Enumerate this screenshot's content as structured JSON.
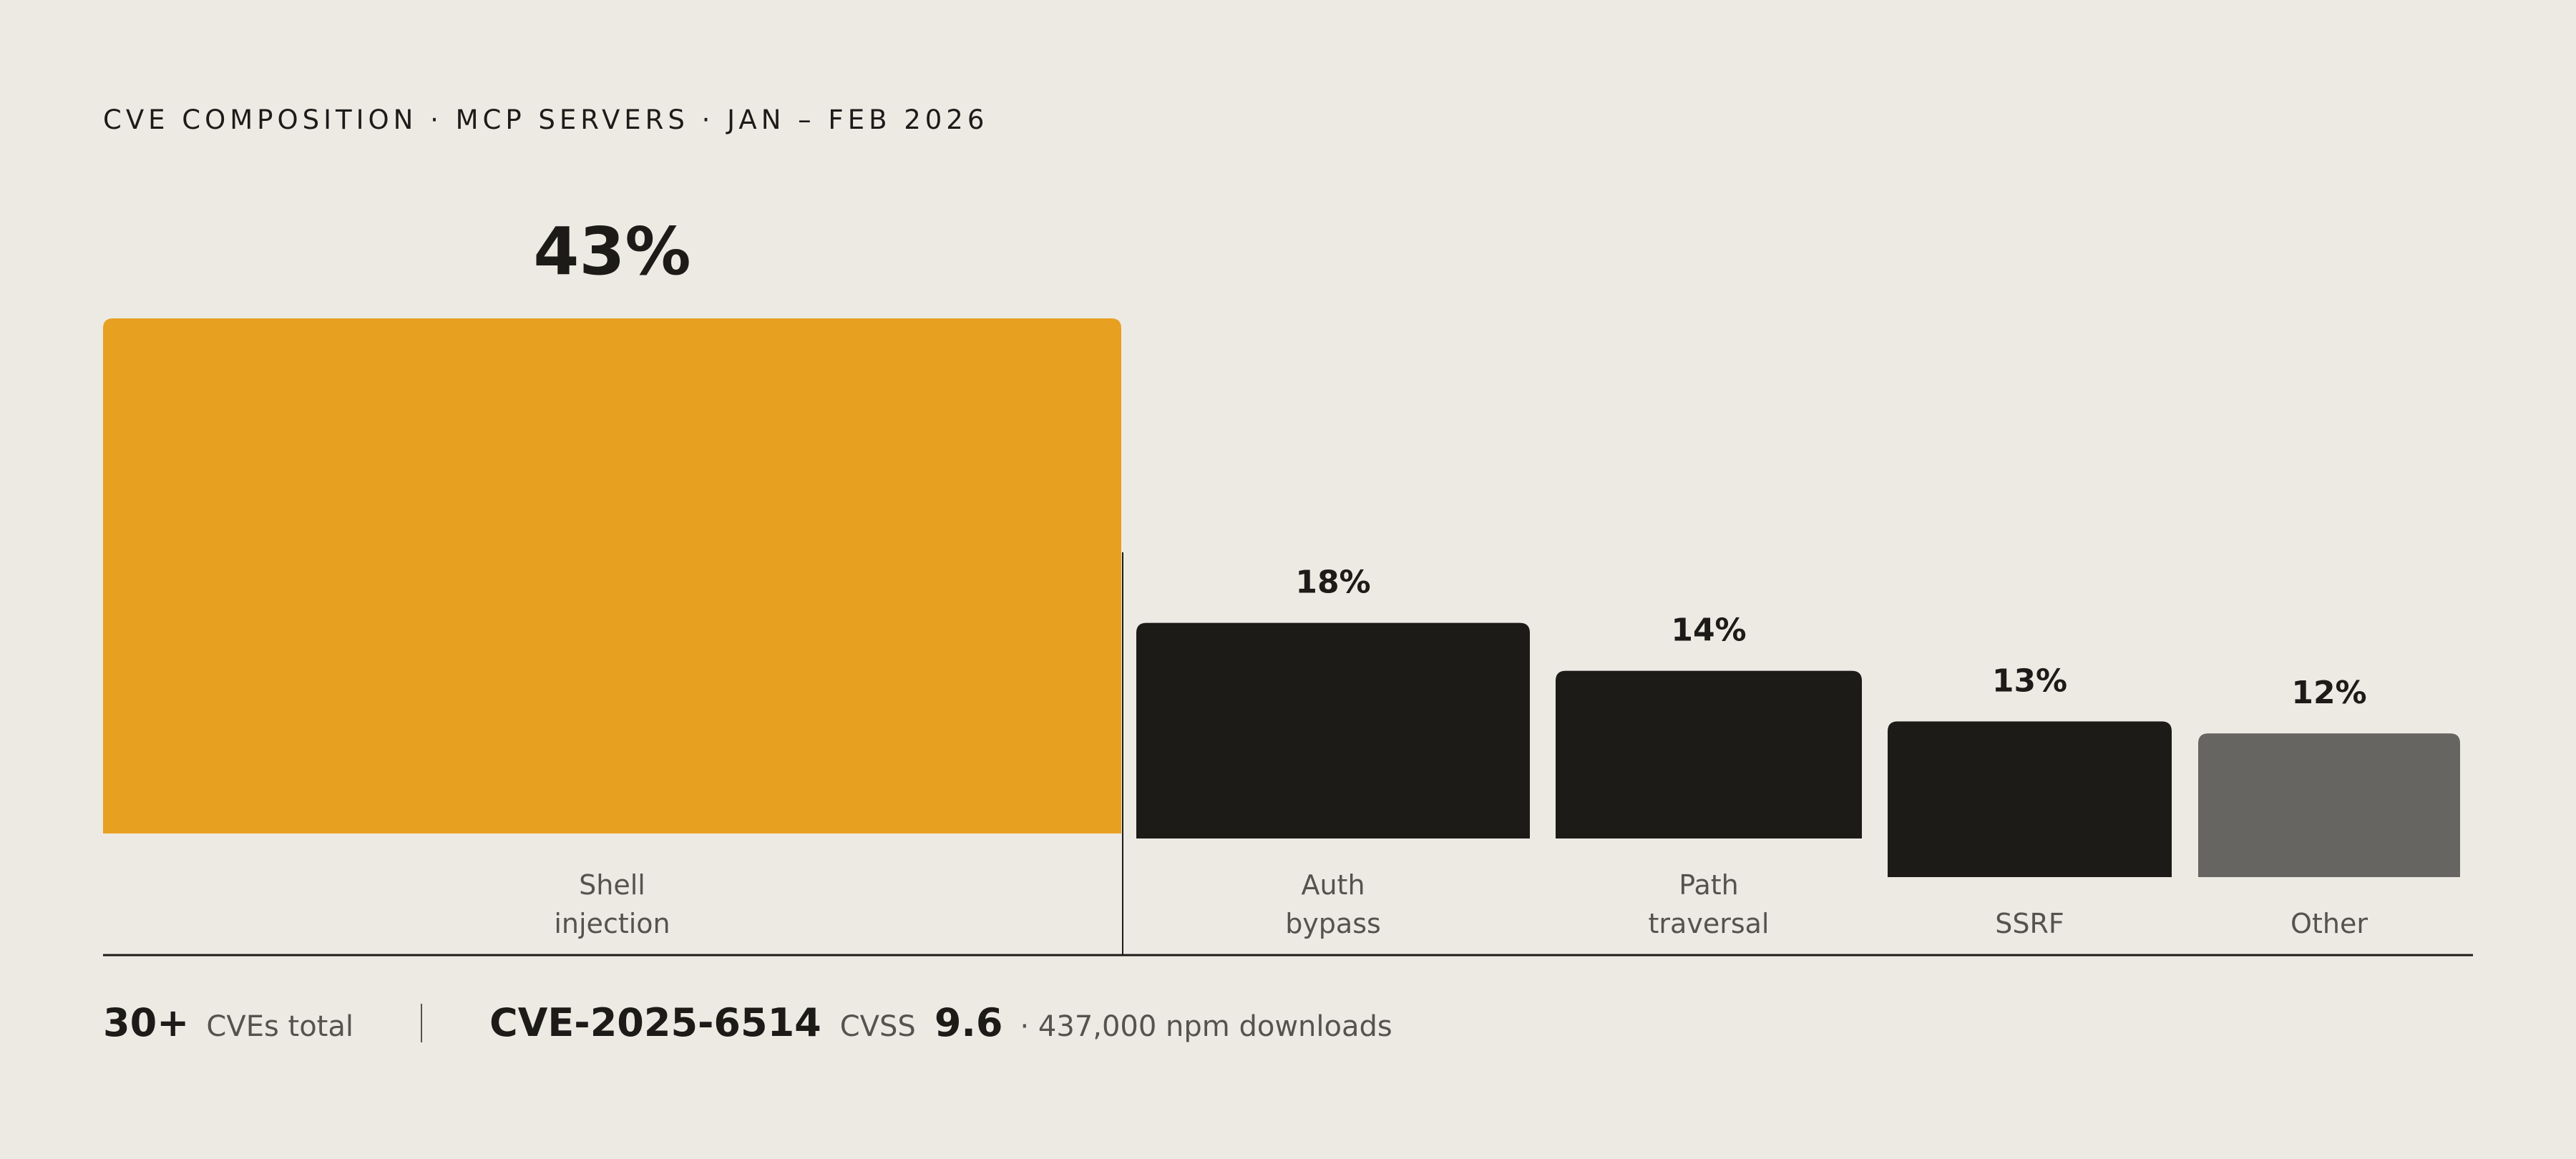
{
  "title": "CVE COMPOSITION · MCP SERVERS · JAN – FEB 2026",
  "colors": {
    "background": "#EDEAE4",
    "highlight": "#E8A021",
    "primary": "#1C1B18",
    "muted": "#666561",
    "axis": "#1C1B18",
    "label": "#56534E"
  },
  "chart_data": {
    "type": "bar",
    "categories": [
      [
        "Shell",
        "injection"
      ],
      [
        "Auth",
        "bypass"
      ],
      [
        "Path",
        "traversal"
      ],
      [
        "SSRF"
      ],
      [
        "Other"
      ]
    ],
    "values": [
      43,
      18,
      14,
      13,
      12
    ],
    "value_labels": [
      "43%",
      "18%",
      "14%",
      "13%",
      "12%"
    ],
    "unit": "%",
    "bar_colors": [
      "#E8A021",
      "#1C1B18",
      "#1C1B18",
      "#1C1B18",
      "#666561"
    ],
    "ylim": [
      0,
      43
    ],
    "grid": false,
    "legend": "none"
  },
  "footer": {
    "total_count": "30+",
    "total_label": "CVEs total",
    "cve_id": "CVE-2025-6514",
    "cvss_label": "CVSS",
    "cvss_score": "9.6",
    "downloads": "· 437,000 npm downloads"
  }
}
